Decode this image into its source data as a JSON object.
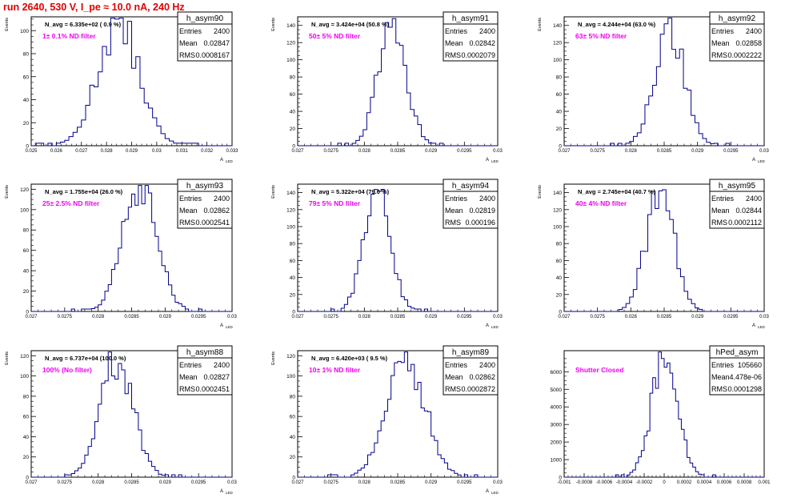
{
  "canvas_title": "run 2640,   530 V, I_pe ≈ 10.0 nA, 240 Hz",
  "colors": {
    "title": "#e00000",
    "histogram": "#00008b",
    "filter_label": "#ee00ee",
    "frame": "#000000"
  },
  "chart_data": [
    {
      "type": "histogram",
      "name": "h_asym90",
      "stats": {
        "entries": "2400",
        "mean": "0.02847",
        "rms": "0.0008167"
      },
      "navg": "N_avg = 6.335e+02 ( 0.9 %)",
      "filter": "1± 0.1% ND filter",
      "ylabel": "Events",
      "xlabel": "A",
      "xlim": [
        0.025,
        0.033
      ],
      "ylim": [
        0,
        112
      ],
      "xticks": [
        "0.025",
        "0.026",
        "0.027",
        "0.028",
        "0.029",
        "0.03",
        "0.031",
        "0.032",
        "0.033"
      ],
      "yticks": [
        0,
        20,
        40,
        60,
        80,
        100
      ],
      "ytick_labels": [
        "0",
        "20",
        "40",
        "60",
        "80",
        "100"
      ],
      "mean_value": 0.02847,
      "sigma": 0.0008167,
      "peak": 107
    },
    {
      "type": "histogram",
      "name": "h_asym91",
      "stats": {
        "entries": "2400",
        "mean": "0.02842",
        "rms": "0.0002079"
      },
      "navg": "N_avg = 3.424e+04 (50.8 %)",
      "filter": "50± 5% ND filter",
      "ylabel": "Events",
      "xlabel": "A",
      "xlim": [
        0.027,
        0.03
      ],
      "ylim": [
        0,
        150
      ],
      "xticks": [
        "0.027",
        "0.0275",
        "0.028",
        "0.0285",
        "0.029",
        "0.0295",
        "0.03"
      ],
      "yticks": [
        0,
        20,
        40,
        60,
        80,
        100,
        120,
        140
      ],
      "ytick_labels": [
        "0",
        "20",
        "40",
        "60",
        "80",
        "100",
        "120",
        "140"
      ],
      "mean_value": 0.02842,
      "sigma": 0.0002079,
      "peak": 143
    },
    {
      "type": "histogram",
      "name": "h_asym92",
      "stats": {
        "entries": "2400",
        "mean": "0.02858",
        "rms": "0.0002222"
      },
      "navg": "N_avg = 4.244e+04 (63.0 %)",
      "filter": "63± 5% ND filter",
      "ylabel": "Events",
      "xlabel": "A",
      "xlim": [
        0.027,
        0.03
      ],
      "ylim": [
        0,
        150
      ],
      "xticks": [
        "0.027",
        "0.0275",
        "0.028",
        "0.0285",
        "0.029",
        "0.0295",
        "0.03"
      ],
      "yticks": [
        0,
        20,
        40,
        60,
        80,
        100,
        120,
        140
      ],
      "ytick_labels": [
        "0",
        "20",
        "40",
        "60",
        "80",
        "100",
        "120",
        "140"
      ],
      "mean_value": 0.02858,
      "sigma": 0.0002222,
      "peak": 142
    },
    {
      "type": "histogram",
      "name": "h_asym93",
      "stats": {
        "entries": "2400",
        "mean": "0.02862",
        "rms": "0.0002541"
      },
      "navg": "N_avg = 1.755e+04 (26.0 %)",
      "filter": "25± 2.5% ND filter",
      "ylabel": "Events",
      "xlabel": "A",
      "xlim": [
        0.027,
        0.03
      ],
      "ylim": [
        0,
        125
      ],
      "xticks": [
        "0.027",
        "0.0275",
        "0.028",
        "0.0285",
        "0.029",
        "0.0295",
        "0.03"
      ],
      "yticks": [
        0,
        20,
        40,
        60,
        80,
        100,
        120
      ],
      "ytick_labels": [
        "0",
        "20",
        "40",
        "60",
        "80",
        "100",
        "120"
      ],
      "mean_value": 0.02862,
      "sigma": 0.0002541,
      "peak": 120
    },
    {
      "type": "histogram",
      "name": "h_asym94",
      "stats": {
        "entries": "2400",
        "mean": "0.02819",
        "rms": "0.000196"
      },
      "navg": "N_avg = 5.322e+04 (79.0 %)",
      "filter": "79± 5% ND filter",
      "ylabel": "Events",
      "xlabel": "A",
      "xlim": [
        0.027,
        0.03
      ],
      "ylim": [
        0,
        150
      ],
      "xticks": [
        "0.027",
        "0.0275",
        "0.028",
        "0.0285",
        "0.029",
        "0.0295",
        "0.03"
      ],
      "yticks": [
        0,
        20,
        40,
        60,
        80,
        100,
        120,
        140
      ],
      "ytick_labels": [
        "0",
        "20",
        "40",
        "60",
        "80",
        "100",
        "120",
        "140"
      ],
      "mean_value": 0.02819,
      "sigma": 0.000196,
      "peak": 140
    },
    {
      "type": "histogram",
      "name": "h_asym95",
      "stats": {
        "entries": "2400",
        "mean": "0.02844",
        "rms": "0.0002112"
      },
      "navg": "N_avg = 2.745e+04 (40.7 %)",
      "filter": "40± 4% ND filter",
      "ylabel": "Events",
      "xlabel": "A",
      "xlim": [
        0.027,
        0.03
      ],
      "ylim": [
        0,
        150
      ],
      "xticks": [
        "0.027",
        "0.0275",
        "0.028",
        "0.0285",
        "0.029",
        "0.0295",
        "0.03"
      ],
      "yticks": [
        0,
        20,
        40,
        60,
        80,
        100,
        120,
        140
      ],
      "ytick_labels": [
        "0",
        "20",
        "40",
        "60",
        "80",
        "100",
        "120",
        "140"
      ],
      "mean_value": 0.02844,
      "sigma": 0.0002112,
      "peak": 143
    },
    {
      "type": "histogram",
      "name": "h_asym88",
      "stats": {
        "entries": "2400",
        "mean": "0.02827",
        "rms": "0.0002451"
      },
      "navg": "N_avg = 6.737e+04 (100.0 %)",
      "filter": "100% (No filter)",
      "ylabel": "Events",
      "xlabel": "A",
      "xlim": [
        0.027,
        0.03
      ],
      "ylim": [
        0,
        125
      ],
      "xticks": [
        "0.027",
        "0.0275",
        "0.028",
        "0.0285",
        "0.029",
        "0.0295",
        "0.03"
      ],
      "yticks": [
        0,
        20,
        40,
        60,
        80,
        100,
        120
      ],
      "ytick_labels": [
        "0",
        "20",
        "40",
        "60",
        "80",
        "100",
        "120"
      ],
      "mean_value": 0.02827,
      "sigma": 0.0002451,
      "peak": 118
    },
    {
      "type": "histogram",
      "name": "h_asym89",
      "stats": {
        "entries": "2400",
        "mean": "0.02862",
        "rms": "0.0002872"
      },
      "navg": "N_avg = 6.420e+03 ( 9.5 %)",
      "filter": "10± 1% ND filter",
      "ylabel": "Events",
      "xlabel": "A",
      "xlim": [
        0.027,
        0.03
      ],
      "ylim": [
        0,
        125
      ],
      "xticks": [
        "0.027",
        "0.0275",
        "0.028",
        "0.0285",
        "0.029",
        "0.0295",
        "0.03"
      ],
      "yticks": [
        0,
        20,
        40,
        60,
        80,
        100,
        120
      ],
      "ytick_labels": [
        "0",
        "20",
        "40",
        "60",
        "80",
        "100",
        "120"
      ],
      "mean_value": 0.02862,
      "sigma": 0.0002872,
      "peak": 118
    },
    {
      "type": "histogram",
      "name": "hPed_asym",
      "stats": {
        "entries": "105660",
        "mean": "4.478e-06",
        "rms": "0.0001298"
      },
      "navg": "",
      "filter": "Shutter Closed",
      "ylabel": "",
      "xlabel": "",
      "xlim": [
        -0.001,
        0.001
      ],
      "ylim": [
        0,
        7200
      ],
      "xticks": [
        "-0.001",
        "-0.0008",
        "-0.0006",
        "-0.0004",
        "-0.0002",
        "0",
        "0.0002",
        "0.0004",
        "0.0006",
        "0.0008",
        "0.001"
      ],
      "yticks": [
        0,
        1000,
        2000,
        3000,
        4000,
        5000,
        6000
      ],
      "ytick_labels": [
        "0",
        "1000",
        "2000",
        "3000",
        "4000",
        "5000",
        "6000"
      ],
      "mean_value": 4.478e-06,
      "sigma": 0.0001298,
      "peak": 6850
    }
  ]
}
